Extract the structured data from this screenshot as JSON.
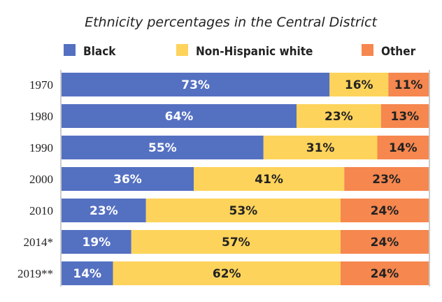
{
  "chart_data": {
    "type": "bar",
    "orientation": "horizontal",
    "stacked": true,
    "title": "Ethnicity percentages in the Central District",
    "categories": [
      "1970",
      "1980",
      "1990",
      "2000",
      "2010",
      "2014*",
      "2019**"
    ],
    "series": [
      {
        "name": "Black",
        "color": "#5470c1",
        "values": [
          73,
          64,
          55,
          36,
          23,
          19,
          14
        ]
      },
      {
        "name": "Non-Hispanic white",
        "color": "#fdd35b",
        "values": [
          16,
          23,
          31,
          41,
          53,
          57,
          62
        ]
      },
      {
        "name": "Other",
        "color": "#f5874f",
        "values": [
          11,
          13,
          14,
          23,
          24,
          24,
          24
        ]
      }
    ],
    "xlim": [
      0,
      100
    ],
    "unit": "%",
    "legend": "top",
    "grid": false
  }
}
